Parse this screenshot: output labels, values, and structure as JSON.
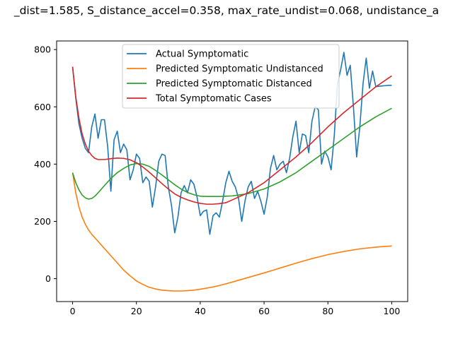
{
  "chart_data": {
    "type": "line",
    "title": "_dist=1.585, S_distance_accel=0.358, max_rate_undist=0.068, undistance_a",
    "xlabel": "",
    "ylabel": "",
    "xlim": [
      -5,
      105
    ],
    "ylim": [
      -80,
      830
    ],
    "xticks": [
      0,
      20,
      40,
      60,
      80,
      100
    ],
    "yticks": [
      0,
      200,
      400,
      600,
      800
    ],
    "grid": false,
    "legend_position": "upper-center",
    "series": [
      {
        "name": "Actual Symptomatic",
        "color": "#1f77b4",
        "x": [
          0,
          1,
          2,
          3,
          4,
          5,
          6,
          7,
          8,
          9,
          10,
          11,
          12,
          13,
          14,
          15,
          16,
          17,
          18,
          19,
          20,
          21,
          22,
          23,
          24,
          25,
          26,
          27,
          28,
          29,
          30,
          31,
          32,
          33,
          34,
          35,
          36,
          37,
          38,
          39,
          40,
          41,
          42,
          43,
          44,
          45,
          46,
          47,
          48,
          49,
          50,
          51,
          52,
          53,
          54,
          55,
          56,
          57,
          58,
          59,
          60,
          61,
          62,
          63,
          64,
          65,
          66,
          67,
          68,
          69,
          70,
          71,
          72,
          73,
          74,
          75,
          76,
          77,
          78,
          79,
          80,
          81,
          82,
          83,
          84,
          85,
          86,
          87,
          88,
          89,
          90,
          91,
          92,
          93,
          94,
          95,
          96,
          97,
          98,
          99,
          100
        ],
        "values": [
          740,
          630,
          540,
          490,
          455,
          440,
          530,
          575,
          490,
          555,
          555,
          460,
          305,
          485,
          515,
          440,
          470,
          450,
          345,
          380,
          435,
          420,
          335,
          355,
          340,
          250,
          320,
          410,
          435,
          430,
          320,
          255,
          160,
          215,
          300,
          325,
          300,
          345,
          330,
          285,
          220,
          235,
          240,
          155,
          220,
          230,
          215,
          270,
          335,
          375,
          340,
          320,
          280,
          200,
          270,
          320,
          340,
          280,
          305,
          270,
          225,
          285,
          385,
          430,
          380,
          400,
          410,
          370,
          420,
          495,
          550,
          440,
          505,
          500,
          440,
          550,
          600,
          590,
          400,
          445,
          425,
          380,
          500,
          680,
          730,
          790,
          710,
          745,
          600,
          425,
          530,
          680,
          770,
          665,
          725,
          670,
          672,
          673,
          674,
          675,
          675
        ]
      },
      {
        "name": "Predicted Symptomatic Undistanced",
        "color": "#ff7f0e",
        "x": [
          0,
          1,
          2,
          3,
          4,
          5,
          6,
          8,
          10,
          12,
          14,
          16,
          18,
          20,
          22,
          24,
          26,
          28,
          30,
          32,
          34,
          36,
          38,
          40,
          42,
          44,
          46,
          48,
          50,
          55,
          60,
          65,
          70,
          75,
          80,
          85,
          90,
          95,
          100
        ],
        "values": [
          370,
          300,
          250,
          215,
          190,
          170,
          155,
          130,
          105,
          80,
          55,
          30,
          10,
          -8,
          -20,
          -30,
          -36,
          -40,
          -42,
          -43,
          -43,
          -42,
          -40,
          -37,
          -33,
          -29,
          -24,
          -18,
          -12,
          4,
          20,
          37,
          54,
          70,
          84,
          95,
          104,
          110,
          114
        ]
      },
      {
        "name": "Predicted Symptomatic Distanced",
        "color": "#2ca02c",
        "x": [
          0,
          1,
          2,
          3,
          4,
          5,
          6,
          7,
          8,
          10,
          12,
          14,
          16,
          18,
          20,
          22,
          24,
          26,
          28,
          30,
          32,
          34,
          36,
          38,
          40,
          42,
          44,
          46,
          48,
          50,
          52,
          55,
          60,
          65,
          70,
          75,
          80,
          85,
          90,
          95,
          100
        ],
        "values": [
          370,
          335,
          310,
          292,
          282,
          278,
          280,
          288,
          300,
          325,
          350,
          370,
          385,
          397,
          402,
          400,
          392,
          378,
          362,
          345,
          328,
          313,
          301,
          293,
          288,
          287,
          287,
          287,
          288,
          289,
          292,
          297,
          313,
          338,
          370,
          410,
          450,
          490,
          530,
          565,
          595
        ]
      },
      {
        "name": "Total Symptomatic Cases",
        "color": "#d62728",
        "x": [
          0,
          1,
          2,
          3,
          4,
          5,
          6,
          7,
          8,
          10,
          12,
          14,
          16,
          18,
          20,
          22,
          24,
          26,
          28,
          30,
          32,
          34,
          36,
          38,
          40,
          42,
          44,
          46,
          48,
          50,
          55,
          60,
          65,
          70,
          75,
          80,
          85,
          90,
          95,
          100
        ],
        "values": [
          740,
          635,
          560,
          505,
          470,
          445,
          430,
          420,
          416,
          416,
          419,
          421,
          420,
          415,
          405,
          390,
          372,
          352,
          332,
          313,
          296,
          284,
          275,
          268,
          263,
          260,
          260,
          262,
          265,
          275,
          300,
          335,
          380,
          425,
          475,
          530,
          580,
          625,
          670,
          708
        ]
      }
    ]
  }
}
